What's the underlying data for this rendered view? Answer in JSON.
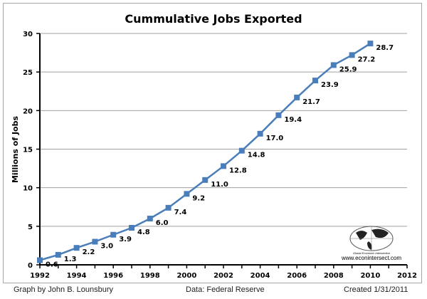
{
  "chart_data": {
    "type": "line",
    "title": "Cummulative Jobs Exported",
    "xlabel": "",
    "ylabel": "Millions of Jobs",
    "xlim": [
      1992,
      2012
    ],
    "ylim": [
      0,
      30
    ],
    "xticks": [
      1992,
      1994,
      1996,
      1998,
      2000,
      2002,
      2004,
      2006,
      2008,
      2010,
      2012
    ],
    "yticks": [
      0,
      5,
      10,
      15,
      20,
      25,
      30
    ],
    "grid": "horizontal",
    "series_color": "#4a7ebb",
    "x": [
      1992,
      1993,
      1994,
      1995,
      1996,
      1997,
      1998,
      1999,
      2000,
      2001,
      2002,
      2003,
      2004,
      2005,
      2006,
      2007,
      2008,
      2009,
      2010
    ],
    "values": [
      0.6,
      1.3,
      2.2,
      3.0,
      3.9,
      4.8,
      6.0,
      7.4,
      9.2,
      11.0,
      12.8,
      14.8,
      17.0,
      19.4,
      21.7,
      23.9,
      25.9,
      27.2,
      28.7
    ],
    "data_labels": [
      "0.6",
      "1.3",
      "2.2",
      "3.0",
      "3.9",
      "4.8",
      "6.0",
      "7.4",
      "9.2",
      "11.0",
      "12.8",
      "14.8",
      "17.0",
      "19.4",
      "21.7",
      "23.9",
      "25.9",
      "27.2",
      "28.7"
    ]
  },
  "logo": {
    "name": "Global Economic Intersection",
    "url": "www.econintersect.com"
  },
  "footer": {
    "credit": "Graph by John B. Lounsbury",
    "source": "Data:  Federal Reserve",
    "created": "Created 1/31/2011"
  }
}
